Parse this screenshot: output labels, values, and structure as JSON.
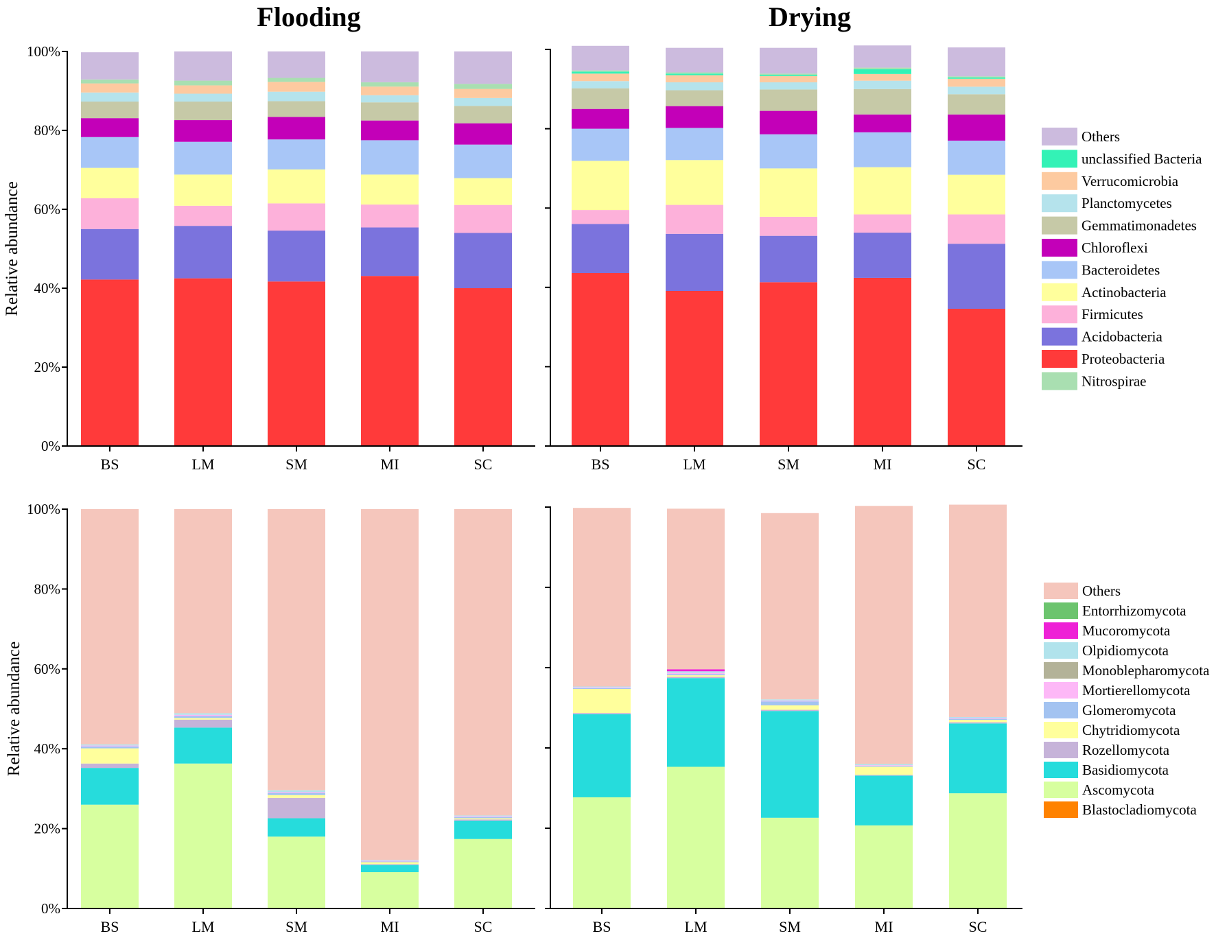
{
  "chart_data": [
    {
      "type": "bar",
      "stacked": true,
      "title": "Flooding",
      "ylabel": "Relative abundance",
      "xlabel": "",
      "ylim": [
        0,
        100
      ],
      "yticks": [
        "0%",
        "20%",
        "40%",
        "60%",
        "80%",
        "100%"
      ],
      "categories": [
        "BS",
        "LM",
        "SM",
        "MI",
        "SC"
      ],
      "series": [
        {
          "name": "Proteobacteria",
          "color": "#ff3a3a",
          "values": [
            42.2,
            42.5,
            41.7,
            43.1,
            40.0
          ]
        },
        {
          "name": "Acidobacteria",
          "color": "#7b73dd",
          "values": [
            12.8,
            13.3,
            12.9,
            12.3,
            14.0
          ]
        },
        {
          "name": "Firmicutes",
          "color": "#fdb1da",
          "values": [
            7.8,
            5.1,
            6.9,
            5.8,
            7.1
          ]
        },
        {
          "name": "Actinobacteria",
          "color": "#ffff9c",
          "values": [
            7.7,
            7.9,
            8.6,
            7.6,
            6.8
          ]
        },
        {
          "name": "Bacteroidetes",
          "color": "#a8c6f7",
          "values": [
            7.8,
            8.3,
            7.6,
            8.7,
            8.5
          ]
        },
        {
          "name": "Chloroflexi",
          "color": "#c300b8",
          "values": [
            4.8,
            5.5,
            5.7,
            5.0,
            5.4
          ]
        },
        {
          "name": "Gemmatimonadetes",
          "color": "#c6c9a7",
          "values": [
            4.2,
            4.7,
            4.0,
            4.6,
            4.4
          ]
        },
        {
          "name": "Planctomycetes",
          "color": "#b5e3ec",
          "values": [
            2.3,
            2.0,
            2.4,
            1.8,
            2.0
          ]
        },
        {
          "name": "Verrucomicrobia",
          "color": "#fdcaa0",
          "values": [
            2.3,
            2.1,
            2.5,
            2.2,
            2.3
          ]
        },
        {
          "name": "unclassified Bacteria",
          "color": "#33f2b6",
          "values": [
            0,
            0,
            0,
            0,
            0
          ]
        },
        {
          "name": "Nitrospirae",
          "color": "#a9dfb1",
          "values": [
            1.0,
            1.2,
            1.0,
            1.1,
            1.3
          ]
        },
        {
          "name": "Others",
          "color": "#ccbbde",
          "values": [
            6.9,
            7.4,
            6.7,
            7.8,
            8.2
          ]
        }
      ]
    },
    {
      "type": "bar",
      "stacked": true,
      "title": "Drying",
      "ylabel": "",
      "xlabel": "",
      "ylim": [
        0,
        100
      ],
      "categories": [
        "BS",
        "LM",
        "SM",
        "MI",
        "SC"
      ],
      "series": [
        {
          "name": "Proteobacteria",
          "color": "#ff3a3a",
          "values": [
            43.6,
            39.1,
            41.3,
            42.4,
            34.6
          ]
        },
        {
          "name": "Acidobacteria",
          "color": "#7b73dd",
          "values": [
            12.4,
            14.4,
            11.7,
            11.4,
            16.4
          ]
        },
        {
          "name": "Firmicutes",
          "color": "#fdb1da",
          "values": [
            3.5,
            7.3,
            4.8,
            4.6,
            7.4
          ]
        },
        {
          "name": "Actinobacteria",
          "color": "#ffff9c",
          "values": [
            12.4,
            11.3,
            12.2,
            11.9,
            10.0
          ]
        },
        {
          "name": "Bacteroidetes",
          "color": "#a8c6f7",
          "values": [
            8.1,
            8.1,
            8.6,
            8.8,
            8.6
          ]
        },
        {
          "name": "Chloroflexi",
          "color": "#c300b8",
          "values": [
            5.0,
            5.5,
            5.9,
            4.5,
            6.6
          ]
        },
        {
          "name": "Gemmatimonadetes",
          "color": "#c6c9a7",
          "values": [
            5.2,
            4.0,
            5.4,
            6.4,
            5.1
          ]
        },
        {
          "name": "Planctomycetes",
          "color": "#b5e3ec",
          "values": [
            1.8,
            2.0,
            1.8,
            2.1,
            1.9
          ]
        },
        {
          "name": "Verrucomicrobia",
          "color": "#fdcaa0",
          "values": [
            1.9,
            1.8,
            1.6,
            1.7,
            2.0
          ]
        },
        {
          "name": "unclassified Bacteria",
          "color": "#33f2b6",
          "values": [
            0.5,
            0.4,
            0.3,
            1.2,
            0.3
          ]
        },
        {
          "name": "Nitrospirae",
          "color": "#a9dfb1",
          "values": [
            0.3,
            0.3,
            0.3,
            0.4,
            0.3
          ]
        },
        {
          "name": "Others",
          "color": "#ccbbde",
          "values": [
            6.2,
            6.2,
            6.5,
            5.6,
            7.3
          ]
        }
      ]
    },
    {
      "type": "bar",
      "stacked": true,
      "title": "",
      "ylabel": "Relative abundance",
      "xlabel": "",
      "ylim": [
        0,
        100
      ],
      "yticks": [
        "0%",
        "20%",
        "40%",
        "60%",
        "80%",
        "100%"
      ],
      "categories": [
        "BS",
        "LM",
        "SM",
        "MI",
        "SC"
      ],
      "series": [
        {
          "name": "Blastocladiomycota",
          "color": "#ff8200",
          "values": [
            0,
            0,
            0,
            0,
            0
          ]
        },
        {
          "name": "Ascomycota",
          "color": "#d7ff9f",
          "values": [
            26.0,
            36.3,
            18.0,
            9.1,
            17.4
          ]
        },
        {
          "name": "Basidiomycota",
          "color": "#26dcdc",
          "values": [
            9.2,
            9.0,
            4.6,
            1.8,
            4.6
          ]
        },
        {
          "name": "Rozellomycota",
          "color": "#c6b3d9",
          "values": [
            1.1,
            2.0,
            5.1,
            0.2,
            0.3
          ]
        },
        {
          "name": "Chytridiomycota",
          "color": "#ffff9c",
          "values": [
            3.8,
            0.4,
            0.7,
            0.5,
            0.3
          ]
        },
        {
          "name": "Glomeromycota",
          "color": "#a3c3f1",
          "values": [
            0.5,
            0.5,
            0.6,
            0.2,
            0.3
          ]
        },
        {
          "name": "Mortierellomycota",
          "color": "#fdb8f7",
          "values": [
            0.2,
            0.3,
            0.2,
            0.2,
            0.2
          ]
        },
        {
          "name": "Monoblepharomycota",
          "color": "#b3b298",
          "values": [
            0,
            0,
            0,
            0,
            0
          ]
        },
        {
          "name": "Olpidiomycota",
          "color": "#b1e3ec",
          "values": [
            0.3,
            0.4,
            0.4,
            0.2,
            0.2
          ]
        },
        {
          "name": "Mucoromycota",
          "color": "#ee21d6",
          "values": [
            0,
            0,
            0,
            0,
            0
          ]
        },
        {
          "name": "Entorrhizomycota",
          "color": "#6cc46e",
          "values": [
            0,
            0,
            0,
            0,
            0
          ]
        },
        {
          "name": "Others",
          "color": "#f5c6bc",
          "values": [
            58.9,
            51.1,
            70.4,
            87.8,
            76.7
          ]
        }
      ]
    },
    {
      "type": "bar",
      "stacked": true,
      "title": "",
      "ylabel": "",
      "xlabel": "",
      "ylim": [
        0,
        100
      ],
      "categories": [
        "BS",
        "LM",
        "SM",
        "MI",
        "SC"
      ],
      "series": [
        {
          "name": "Blastocladiomycota",
          "color": "#ff8200",
          "values": [
            0,
            0,
            0,
            0,
            0
          ]
        },
        {
          "name": "Ascomycota",
          "color": "#d7ff9f",
          "values": [
            27.7,
            35.3,
            22.6,
            20.7,
            28.7
          ]
        },
        {
          "name": "Basidiomycota",
          "color": "#26dcdc",
          "values": [
            20.7,
            22.1,
            26.6,
            12.4,
            17.4
          ]
        },
        {
          "name": "Rozellomycota",
          "color": "#c6b3d9",
          "values": [
            0.3,
            0.3,
            0.3,
            0.2,
            0.3
          ]
        },
        {
          "name": "Chytridiomycota",
          "color": "#ffff9c",
          "values": [
            6.0,
            0.4,
            1.1,
            2.0,
            0.6
          ]
        },
        {
          "name": "Glomeromycota",
          "color": "#a3c3f1",
          "values": [
            0.2,
            0.3,
            1.0,
            0.2,
            0.3
          ]
        },
        {
          "name": "Mortierellomycota",
          "color": "#fdb8f7",
          "values": [
            0.2,
            0.3,
            0.2,
            0.2,
            0.2
          ]
        },
        {
          "name": "Monoblepharomycota",
          "color": "#b3b298",
          "values": [
            0,
            0,
            0,
            0,
            0
          ]
        },
        {
          "name": "Olpidiomycota",
          "color": "#b1e3ec",
          "values": [
            0.2,
            0.4,
            0.3,
            0.3,
            0.2
          ]
        },
        {
          "name": "Mucoromycota",
          "color": "#ee21d6",
          "values": [
            0,
            0.5,
            0,
            0,
            0
          ]
        },
        {
          "name": "Entorrhizomycota",
          "color": "#6cc46e",
          "values": [
            0,
            0,
            0,
            0,
            0
          ]
        },
        {
          "name": "Others",
          "color": "#f5c6bc",
          "values": [
            44.5,
            40.0,
            46.4,
            64.3,
            52.9
          ]
        }
      ]
    }
  ],
  "legends": {
    "bacteria": [
      {
        "label": "Others",
        "color": "#ccbbde"
      },
      {
        "label": "unclassified Bacteria",
        "color": "#33f2b6"
      },
      {
        "label": "Verrucomicrobia",
        "color": "#fdcaa0"
      },
      {
        "label": "Planctomycetes",
        "color": "#b5e3ec"
      },
      {
        "label": "Gemmatimonadetes",
        "color": "#c6c9a7"
      },
      {
        "label": "Chloroflexi",
        "color": "#c300b8"
      },
      {
        "label": "Bacteroidetes",
        "color": "#a8c6f7"
      },
      {
        "label": "Actinobacteria",
        "color": "#ffff9c"
      },
      {
        "label": "Firmicutes",
        "color": "#fdb1da"
      },
      {
        "label": "Acidobacteria",
        "color": "#7b73dd"
      },
      {
        "label": "Proteobacteria",
        "color": "#ff3a3a"
      },
      {
        "label": "Nitrospirae",
        "color": "#a9dfb1"
      }
    ],
    "fungi": [
      {
        "label": "Others",
        "color": "#f5c6bc"
      },
      {
        "label": "Entorrhizomycota",
        "color": "#6cc46e"
      },
      {
        "label": "Mucoromycota",
        "color": "#ee21d6"
      },
      {
        "label": "Olpidiomycota",
        "color": "#b1e3ec"
      },
      {
        "label": "Monoblepharomycota",
        "color": "#b3b298"
      },
      {
        "label": "Mortierellomycota",
        "color": "#fdb8f7"
      },
      {
        "label": "Glomeromycota",
        "color": "#a3c3f1"
      },
      {
        "label": "Chytridiomycota",
        "color": "#ffff9c"
      },
      {
        "label": "Rozellomycota",
        "color": "#c6b3d9"
      },
      {
        "label": "Basidiomycota",
        "color": "#26dcdc"
      },
      {
        "label": "Ascomycota",
        "color": "#d7ff9f"
      },
      {
        "label": "Blastocladiomycota",
        "color": "#ff8200"
      }
    ]
  }
}
